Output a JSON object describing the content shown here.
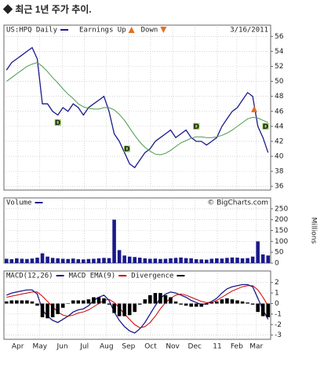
{
  "header": {
    "title": "◆ 최근 1년 주가 추이."
  },
  "chart_data": [
    {
      "type": "line",
      "title": "US:HPQ Daily",
      "date": "3/16/2011",
      "legend_items": [
        "Earnings Up",
        "Down"
      ],
      "x": [
        0,
        1,
        2,
        3,
        4,
        5,
        6,
        7,
        8,
        9,
        10,
        11,
        12,
        13,
        14,
        15,
        16,
        17,
        18,
        19,
        20,
        21,
        22,
        23,
        24,
        25,
        26,
        27,
        28,
        29,
        30,
        31,
        32,
        33,
        34,
        35,
        36,
        37,
        38,
        39,
        40,
        41,
        42,
        43,
        44,
        45,
        46,
        47,
        48,
        49,
        50,
        51
      ],
      "series": [
        {
          "name": "US:HPQ Daily",
          "color": "#1a1a8c",
          "values": [
            51.5,
            52.5,
            53,
            53.5,
            54,
            54.5,
            53,
            47,
            47,
            46,
            45.5,
            46.5,
            46,
            47,
            46.5,
            45.5,
            46.5,
            47,
            47.5,
            48,
            46,
            43,
            42,
            40.5,
            39,
            38.5,
            39.5,
            40.5,
            41,
            42,
            42.5,
            43,
            43.5,
            42.5,
            43,
            43.5,
            42.5,
            42,
            42,
            41.5,
            42,
            42.5,
            44,
            45,
            46,
            46.5,
            47.5,
            48.5,
            48,
            44,
            42.5,
            40.5
          ]
        },
        {
          "color": "#4a9a4a",
          "values": [
            50,
            50.5,
            51,
            51.5,
            52,
            52.3,
            52.5,
            52,
            51.3,
            50.5,
            49.8,
            49,
            48.3,
            47.7,
            47,
            46.6,
            46.4,
            46.3,
            46.3,
            46.5,
            46.5,
            46.2,
            45.6,
            44.8,
            43.8,
            42.8,
            41.9,
            41.2,
            40.7,
            40.3,
            40.2,
            40.4,
            40.8,
            41.3,
            41.8,
            42.1,
            42.4,
            42.6,
            42.6,
            42.5,
            42.5,
            42.6,
            42.8,
            43.1,
            43.5,
            44,
            44.5,
            45,
            45.2,
            45.1,
            44.8,
            44.5
          ]
        }
      ],
      "annotations": [
        {
          "text": "D",
          "x": 10,
          "y": 44.5
        },
        {
          "text": "D",
          "x": 23.5,
          "y": 41
        },
        {
          "text": "D",
          "x": 37,
          "y": 44
        },
        {
          "text": "D",
          "x": 50.5,
          "y": 44
        }
      ],
      "earnings": [
        {
          "x": 48.3,
          "y": 46.3
        }
      ],
      "ylim": [
        35.5,
        57.5
      ],
      "yticks": [
        36,
        38,
        40,
        42,
        44,
        46,
        48,
        50,
        52,
        54,
        56
      ],
      "grid": true
    },
    {
      "type": "bar",
      "axis_label": "Millions",
      "credit": "© BigCharts.com",
      "x": [
        0,
        1,
        2,
        3,
        4,
        5,
        6,
        7,
        8,
        9,
        10,
        11,
        12,
        13,
        14,
        15,
        16,
        17,
        18,
        19,
        20,
        21,
        22,
        23,
        24,
        25,
        26,
        27,
        28,
        29,
        30,
        31,
        32,
        33,
        34,
        35,
        36,
        37,
        38,
        39,
        40,
        41,
        42,
        43,
        44,
        45,
        46,
        47,
        48,
        49,
        50,
        51
      ],
      "series": [
        {
          "name": "Volume",
          "color": "#1a1a8c",
          "values": [
            20,
            18,
            22,
            20,
            19,
            21,
            25,
            45,
            30,
            24,
            22,
            20,
            19,
            21,
            18,
            17,
            19,
            20,
            22,
            24,
            23,
            200,
            60,
            35,
            30,
            28,
            25,
            22,
            20,
            21,
            19,
            20,
            22,
            24,
            26,
            23,
            22,
            18,
            17,
            16,
            20,
            22,
            21,
            24,
            26,
            25,
            22,
            23,
            30,
            100,
            40,
            35
          ]
        }
      ],
      "ylim": [
        0,
        300
      ],
      "yticks": [
        0,
        50,
        100,
        150,
        200,
        250
      ],
      "grid": true
    },
    {
      "type": "line",
      "x": [
        0,
        1,
        2,
        3,
        4,
        5,
        6,
        7,
        8,
        9,
        10,
        11,
        12,
        13,
        14,
        15,
        16,
        17,
        18,
        19,
        20,
        21,
        22,
        23,
        24,
        25,
        26,
        27,
        28,
        29,
        30,
        31,
        32,
        33,
        34,
        35,
        36,
        37,
        38,
        39,
        40,
        41,
        42,
        43,
        44,
        45,
        46,
        47,
        48,
        49,
        50,
        51
      ],
      "series": [
        {
          "name": "MACD(12,26)",
          "color": "#1a1a8c",
          "values": [
            0.8,
            1.0,
            1.1,
            1.2,
            1.3,
            1.3,
            0.9,
            -0.6,
            -1.2,
            -1.6,
            -1.8,
            -1.5,
            -1.2,
            -0.8,
            -0.6,
            -0.5,
            -0.2,
            0.3,
            0.6,
            0.8,
            0.3,
            -0.8,
            -1.6,
            -2.2,
            -2.6,
            -2.8,
            -2.4,
            -1.8,
            -1.0,
            -0.2,
            0.5,
            0.9,
            1.1,
            1.0,
            0.8,
            0.6,
            0.3,
            0.1,
            -0.1,
            0.0,
            0.2,
            0.5,
            1.0,
            1.4,
            1.6,
            1.7,
            1.8,
            1.8,
            1.6,
            0.5,
            -0.6,
            -1.5
          ]
        },
        {
          "name": "MACD EMA(9)",
          "color": "#cc0000",
          "values": [
            0.6,
            0.7,
            0.8,
            0.9,
            1.0,
            1.1,
            1.1,
            0.7,
            0.2,
            -0.3,
            -0.8,
            -1.1,
            -1.2,
            -1.1,
            -0.9,
            -0.8,
            -0.6,
            -0.3,
            0.0,
            0.3,
            0.4,
            0.1,
            -0.4,
            -1.0,
            -1.5,
            -2.0,
            -2.3,
            -2.2,
            -1.8,
            -1.2,
            -0.5,
            0.1,
            0.5,
            0.8,
            0.9,
            0.8,
            0.6,
            0.4,
            0.2,
            0.1,
            0.1,
            0.3,
            0.6,
            0.9,
            1.2,
            1.4,
            1.6,
            1.7,
            1.7,
            1.3,
            0.6,
            -0.2
          ]
        },
        {
          "name": "Divergence",
          "color": "#000000",
          "type": "bar",
          "values": [
            0.2,
            0.3,
            0.3,
            0.3,
            0.3,
            0.2,
            -0.2,
            -1.3,
            -1.4,
            -1.3,
            -1.0,
            -0.4,
            0,
            0.3,
            0.3,
            0.3,
            0.4,
            0.6,
            0.6,
            0.5,
            -0.1,
            -0.9,
            -1.2,
            -1.2,
            -1.1,
            -0.8,
            -0.1,
            0.4,
            0.8,
            1.0,
            1.0,
            0.8,
            0.6,
            0.2,
            -0.1,
            -0.2,
            -0.3,
            -0.3,
            -0.3,
            -0.1,
            0.1,
            0.2,
            0.4,
            0.5,
            0.4,
            0.3,
            0.2,
            0.1,
            -0.1,
            -0.8,
            -1.2,
            -1.3
          ]
        }
      ],
      "ylim": [
        -3.4,
        3.1
      ],
      "yticks": [
        -3,
        -2,
        -1,
        0,
        1,
        2
      ],
      "grid": true,
      "xticks": [
        {
          "value": 2.2,
          "label": "Apr"
        },
        {
          "value": 6.5,
          "label": "May"
        },
        {
          "value": 10.9,
          "label": "Jun"
        },
        {
          "value": 15.2,
          "label": "Jul"
        },
        {
          "value": 19.5,
          "label": "Aug"
        },
        {
          "value": 23.8,
          "label": "Sep"
        },
        {
          "value": 28.1,
          "label": "Oct"
        },
        {
          "value": 32.4,
          "label": "Nov"
        },
        {
          "value": 36.7,
          "label": "Dec"
        },
        {
          "value": 41.1,
          "label": "11"
        },
        {
          "value": 44.9,
          "label": "Feb"
        },
        {
          "value": 48.7,
          "label": "Mar"
        }
      ]
    }
  ]
}
